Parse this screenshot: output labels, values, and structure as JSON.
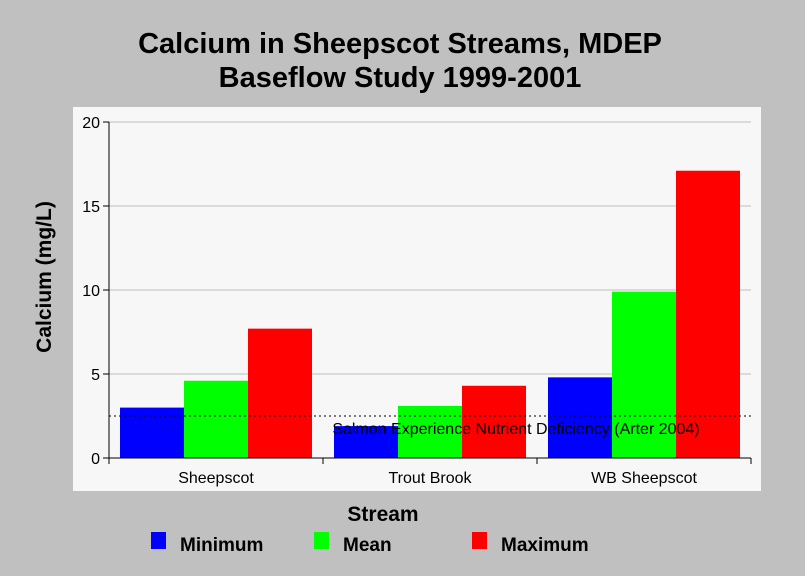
{
  "chart_data": {
    "type": "bar",
    "title": "Calcium in Sheepscot Streams, MDEP",
    "subtitle": "Baseflow Study 1999-2001",
    "xlabel": "Stream",
    "ylabel": "Calcium (mg/L)",
    "ylim": [
      0,
      20
    ],
    "yticks": [
      "0",
      "5",
      "10",
      "15",
      "20"
    ],
    "grid": true,
    "legend_position": "bottom",
    "categories": [
      "Sheepscot",
      "Trout Brook",
      "WB Sheepscot"
    ],
    "series": [
      {
        "name": "Minimum",
        "color": "#0000ff",
        "values": [
          3.0,
          1.9,
          4.8
        ]
      },
      {
        "name": "Mean",
        "color": "#00ff00",
        "values": [
          4.6,
          3.1,
          9.9
        ]
      },
      {
        "name": "Maximum",
        "color": "#ff0000",
        "values": [
          7.7,
          4.3,
          17.1
        ]
      }
    ],
    "reference_line": {
      "value": 2.5,
      "label": "Salmon Experience Nutrient Deficiency (Arter 2004)"
    }
  }
}
